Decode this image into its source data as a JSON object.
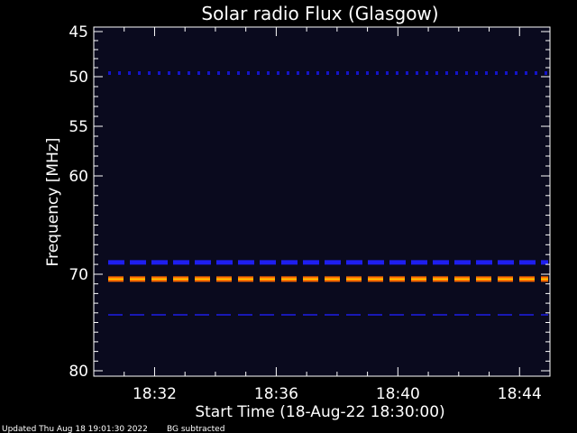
{
  "chart_data": {
    "type": "heatmap",
    "title": "Solar radio Flux (Glasgow)",
    "xlabel": "Start Time (18-Aug-22 18:30:00)",
    "ylabel": "Frequency [MHz]",
    "x_range_minutes": [
      0,
      15
    ],
    "y_range_mhz": [
      45,
      80
    ],
    "y_ticks": [
      "45",
      "50",
      "55",
      "60",
      "70",
      "80"
    ],
    "y_tick_values": [
      45,
      50,
      55,
      60,
      70,
      80
    ],
    "x_ticks": [
      "18:32",
      "18:36",
      "18:40",
      "18:44"
    ],
    "x_tick_minutes": [
      2,
      6,
      10,
      14
    ],
    "background_color": "#0a0a1e",
    "bands": [
      {
        "freq_mhz": 49.6,
        "intensity": "low",
        "color": "#1414c8",
        "style": "dotted"
      },
      {
        "freq_mhz": 68.8,
        "intensity": "medium",
        "color": "#1e1ef0",
        "style": "dashed"
      },
      {
        "freq_mhz": 70.5,
        "intensity": "high",
        "color": "#ff6a00",
        "style": "dashed"
      },
      {
        "freq_mhz": 74.2,
        "intensity": "low",
        "color": "#1818b4",
        "style": "dashed"
      }
    ],
    "footer": {
      "updated": "Updated Thu Aug 18 19:01:30 2022",
      "note": "BG subtracted"
    }
  }
}
